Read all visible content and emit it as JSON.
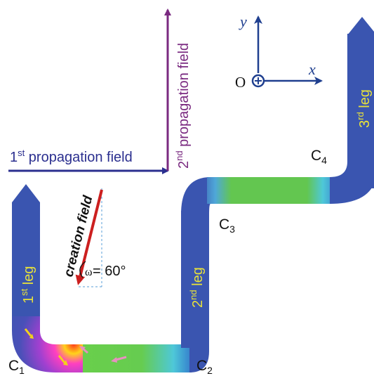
{
  "fields": {
    "first": {
      "label_base": "1",
      "label_sup": "st",
      "label_rest": " propagation field",
      "color": "#2b2f8f"
    },
    "second": {
      "label_base": "2",
      "label_sup": "nd",
      "label_rest": " propagation field",
      "color": "#7a2a80"
    },
    "creation": {
      "label": "creation field",
      "angle_symbol": "ω",
      "angle_value": " = 60°",
      "color": "#cc1f1f"
    }
  },
  "axes": {
    "y_label": "y",
    "x_label": "x",
    "origin_label": "O"
  },
  "legs": [
    {
      "base": "1",
      "sup": "st",
      "rest": " leg"
    },
    {
      "base": "2",
      "sup": "nd",
      "rest": " leg"
    },
    {
      "base": "3",
      "sup": "rd",
      "rest": " leg"
    }
  ],
  "corners": [
    {
      "base": "C",
      "sub": "1"
    },
    {
      "base": "C",
      "sub": "2"
    },
    {
      "base": "C",
      "sub": "3"
    },
    {
      "base": "C",
      "sub": "4"
    }
  ],
  "colors": {
    "wire_blue": "#3a55b0",
    "wire_green": "#5dc04a",
    "leg_text": "#e8e23a",
    "domain_arrow_yellow": "#f2d21a",
    "domain_arrow_pink": "#e890c0",
    "axis_color": "#1f3f8f"
  }
}
